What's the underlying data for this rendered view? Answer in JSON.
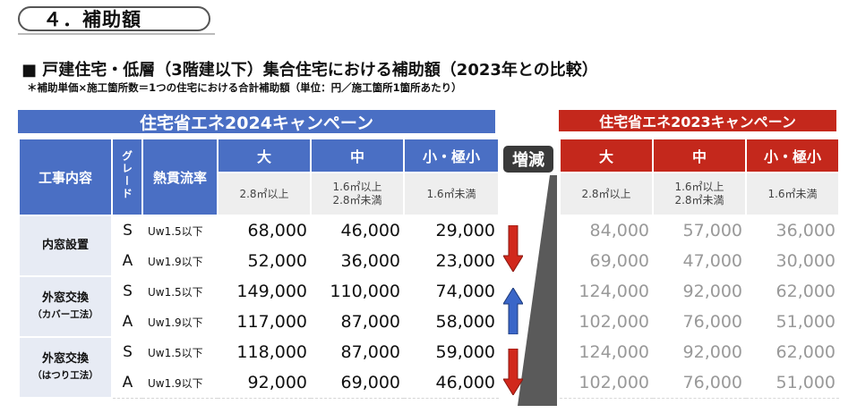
{
  "section": {
    "title": "４．補助額"
  },
  "heading": "■ 戸建住宅・低層（3階建以下）集合住宅における補助額（2023年との比較）",
  "note": "＊補助単価×施工箇所数＝1つの住宅における合計補助額（単位：円／施工箇所1箇所あたり）",
  "campaign2024": {
    "title": "住宅省エネ2024キャンペーン",
    "headers": {
      "work": "工事内容",
      "grade": "グレード",
      "perf": "熱貫流率"
    },
    "sizes": [
      {
        "label": "大",
        "range": "2.8㎡以上",
        "range2": ""
      },
      {
        "label": "中",
        "range": "1.6㎡以上",
        "range2": "2.8㎡未満"
      },
      {
        "label": "小・極小",
        "range": "1.6㎡未満",
        "range2": ""
      }
    ],
    "groups": [
      {
        "name": "内窓設置",
        "sub": "",
        "rows": [
          {
            "grade": "S",
            "perf": "Uw1.5以下",
            "values": [
              "68,000",
              "46,000",
              "29,000"
            ]
          },
          {
            "grade": "A",
            "perf": "Uw1.9以下",
            "values": [
              "52,000",
              "36,000",
              "23,000"
            ]
          }
        ]
      },
      {
        "name": "外窓交換",
        "sub": "（カバー工法）",
        "rows": [
          {
            "grade": "S",
            "perf": "Uw1.5以下",
            "values": [
              "149,000",
              "110,000",
              "74,000"
            ]
          },
          {
            "grade": "A",
            "perf": "Uw1.9以下",
            "values": [
              "117,000",
              "87,000",
              "58,000"
            ]
          }
        ]
      },
      {
        "name": "外窓交換",
        "sub": "（はつり工法）",
        "rows": [
          {
            "grade": "S",
            "perf": "Uw1.5以下",
            "values": [
              "118,000",
              "87,000",
              "59,000"
            ]
          },
          {
            "grade": "A",
            "perf": "Uw1.9以下",
            "values": [
              "92,000",
              "69,000",
              "46,000"
            ]
          }
        ]
      }
    ]
  },
  "change_label": "増減",
  "change_arrows": [
    "down",
    "up",
    "down"
  ],
  "colors": {
    "blue": "#4a6fc4",
    "red": "#c4281c",
    "down_arrow": "#d1281c",
    "up_arrow": "#3a66c8"
  },
  "campaign2023": {
    "title": "住宅省エネ2023キャンペーン",
    "sizes": [
      {
        "label": "大",
        "range": "2.8㎡以上",
        "range2": ""
      },
      {
        "label": "中",
        "range": "1.6㎡以上",
        "range2": "2.8㎡未満"
      },
      {
        "label": "小・極小",
        "range": "1.6㎡未満",
        "range2": ""
      }
    ],
    "rows": [
      [
        "84,000",
        "57,000",
        "36,000"
      ],
      [
        "69,000",
        "47,000",
        "30,000"
      ],
      [
        "124,000",
        "92,000",
        "62,000"
      ],
      [
        "102,000",
        "76,000",
        "51,000"
      ],
      [
        "124,000",
        "92,000",
        "62,000"
      ],
      [
        "102,000",
        "76,000",
        "51,000"
      ]
    ]
  }
}
